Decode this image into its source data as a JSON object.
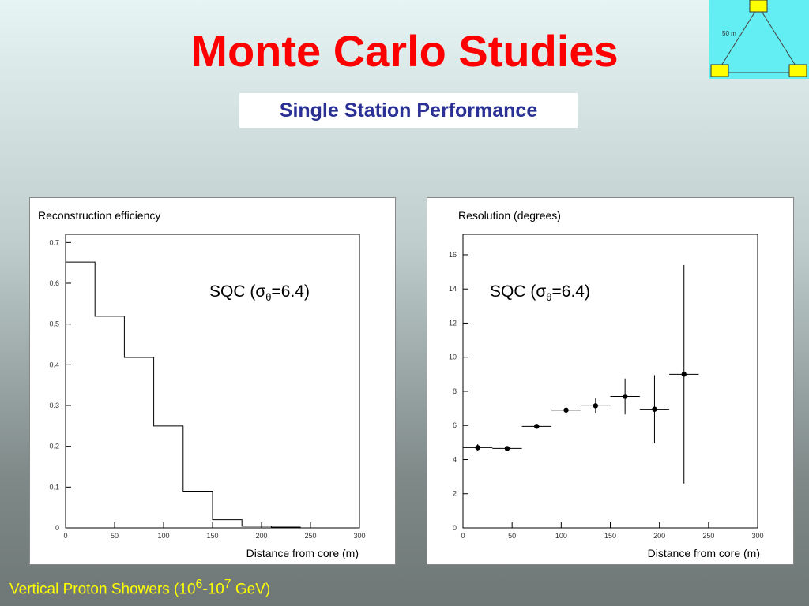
{
  "title": "Monte Carlo Studies",
  "subtitle": "Single Station Performance",
  "footer": {
    "prefix": "Vertical Proton Showers (10",
    "e1": "6",
    "mid": "-10",
    "e2": "7",
    "suffix": " GeV)"
  },
  "inset": {
    "label": "50 m"
  },
  "colors": {
    "title": "#ff0000",
    "subtitle": "#2a3094",
    "footer": "#ffff00",
    "inset_bg": "#62eef2",
    "station": "#ffff00"
  },
  "chart_data": [
    {
      "type": "histogram",
      "title": "Reconstruction efficiency",
      "annotation": {
        "base": "SQC (σ",
        "sub": "θ",
        "tail": "=6.4)"
      },
      "xlabel": "Distance from core (m)",
      "bin_edges": [
        0,
        30,
        60,
        90,
        120,
        150,
        180,
        210,
        240
      ],
      "values": [
        0.652,
        0.519,
        0.418,
        0.25,
        0.09,
        0.02,
        0.004,
        0.002
      ],
      "xlim": [
        0,
        300
      ],
      "ylim": [
        0,
        0.72
      ],
      "xticks": [
        "0",
        "50",
        "100",
        "150",
        "200",
        "250",
        "300"
      ],
      "yticks": [
        "0",
        "0.1",
        "0.2",
        "0.3",
        "0.4",
        "0.5",
        "0.6",
        "0.7"
      ]
    },
    {
      "type": "scatter",
      "title": "Resolution (degrees)",
      "annotation": {
        "base": "SQC (σ",
        "sub": "θ",
        "tail": "=6.4)"
      },
      "xlabel": "Distance from core (m)",
      "x": [
        15,
        45,
        75,
        105,
        135,
        165,
        195,
        225
      ],
      "y": [
        4.7,
        4.65,
        5.95,
        6.9,
        7.15,
        7.7,
        6.95,
        9.0
      ],
      "yerr": [
        0.2,
        0.08,
        0.12,
        0.3,
        0.45,
        1.05,
        2.0,
        6.4
      ],
      "xerr": [
        15,
        15,
        15,
        15,
        15,
        15,
        15,
        15
      ],
      "xlim": [
        0,
        300
      ],
      "ylim": [
        0,
        17.2
      ],
      "xticks": [
        "0",
        "50",
        "100",
        "150",
        "200",
        "250",
        "300"
      ],
      "yticks": [
        "0",
        "2",
        "4",
        "6",
        "8",
        "10",
        "12",
        "14",
        "16"
      ]
    }
  ]
}
